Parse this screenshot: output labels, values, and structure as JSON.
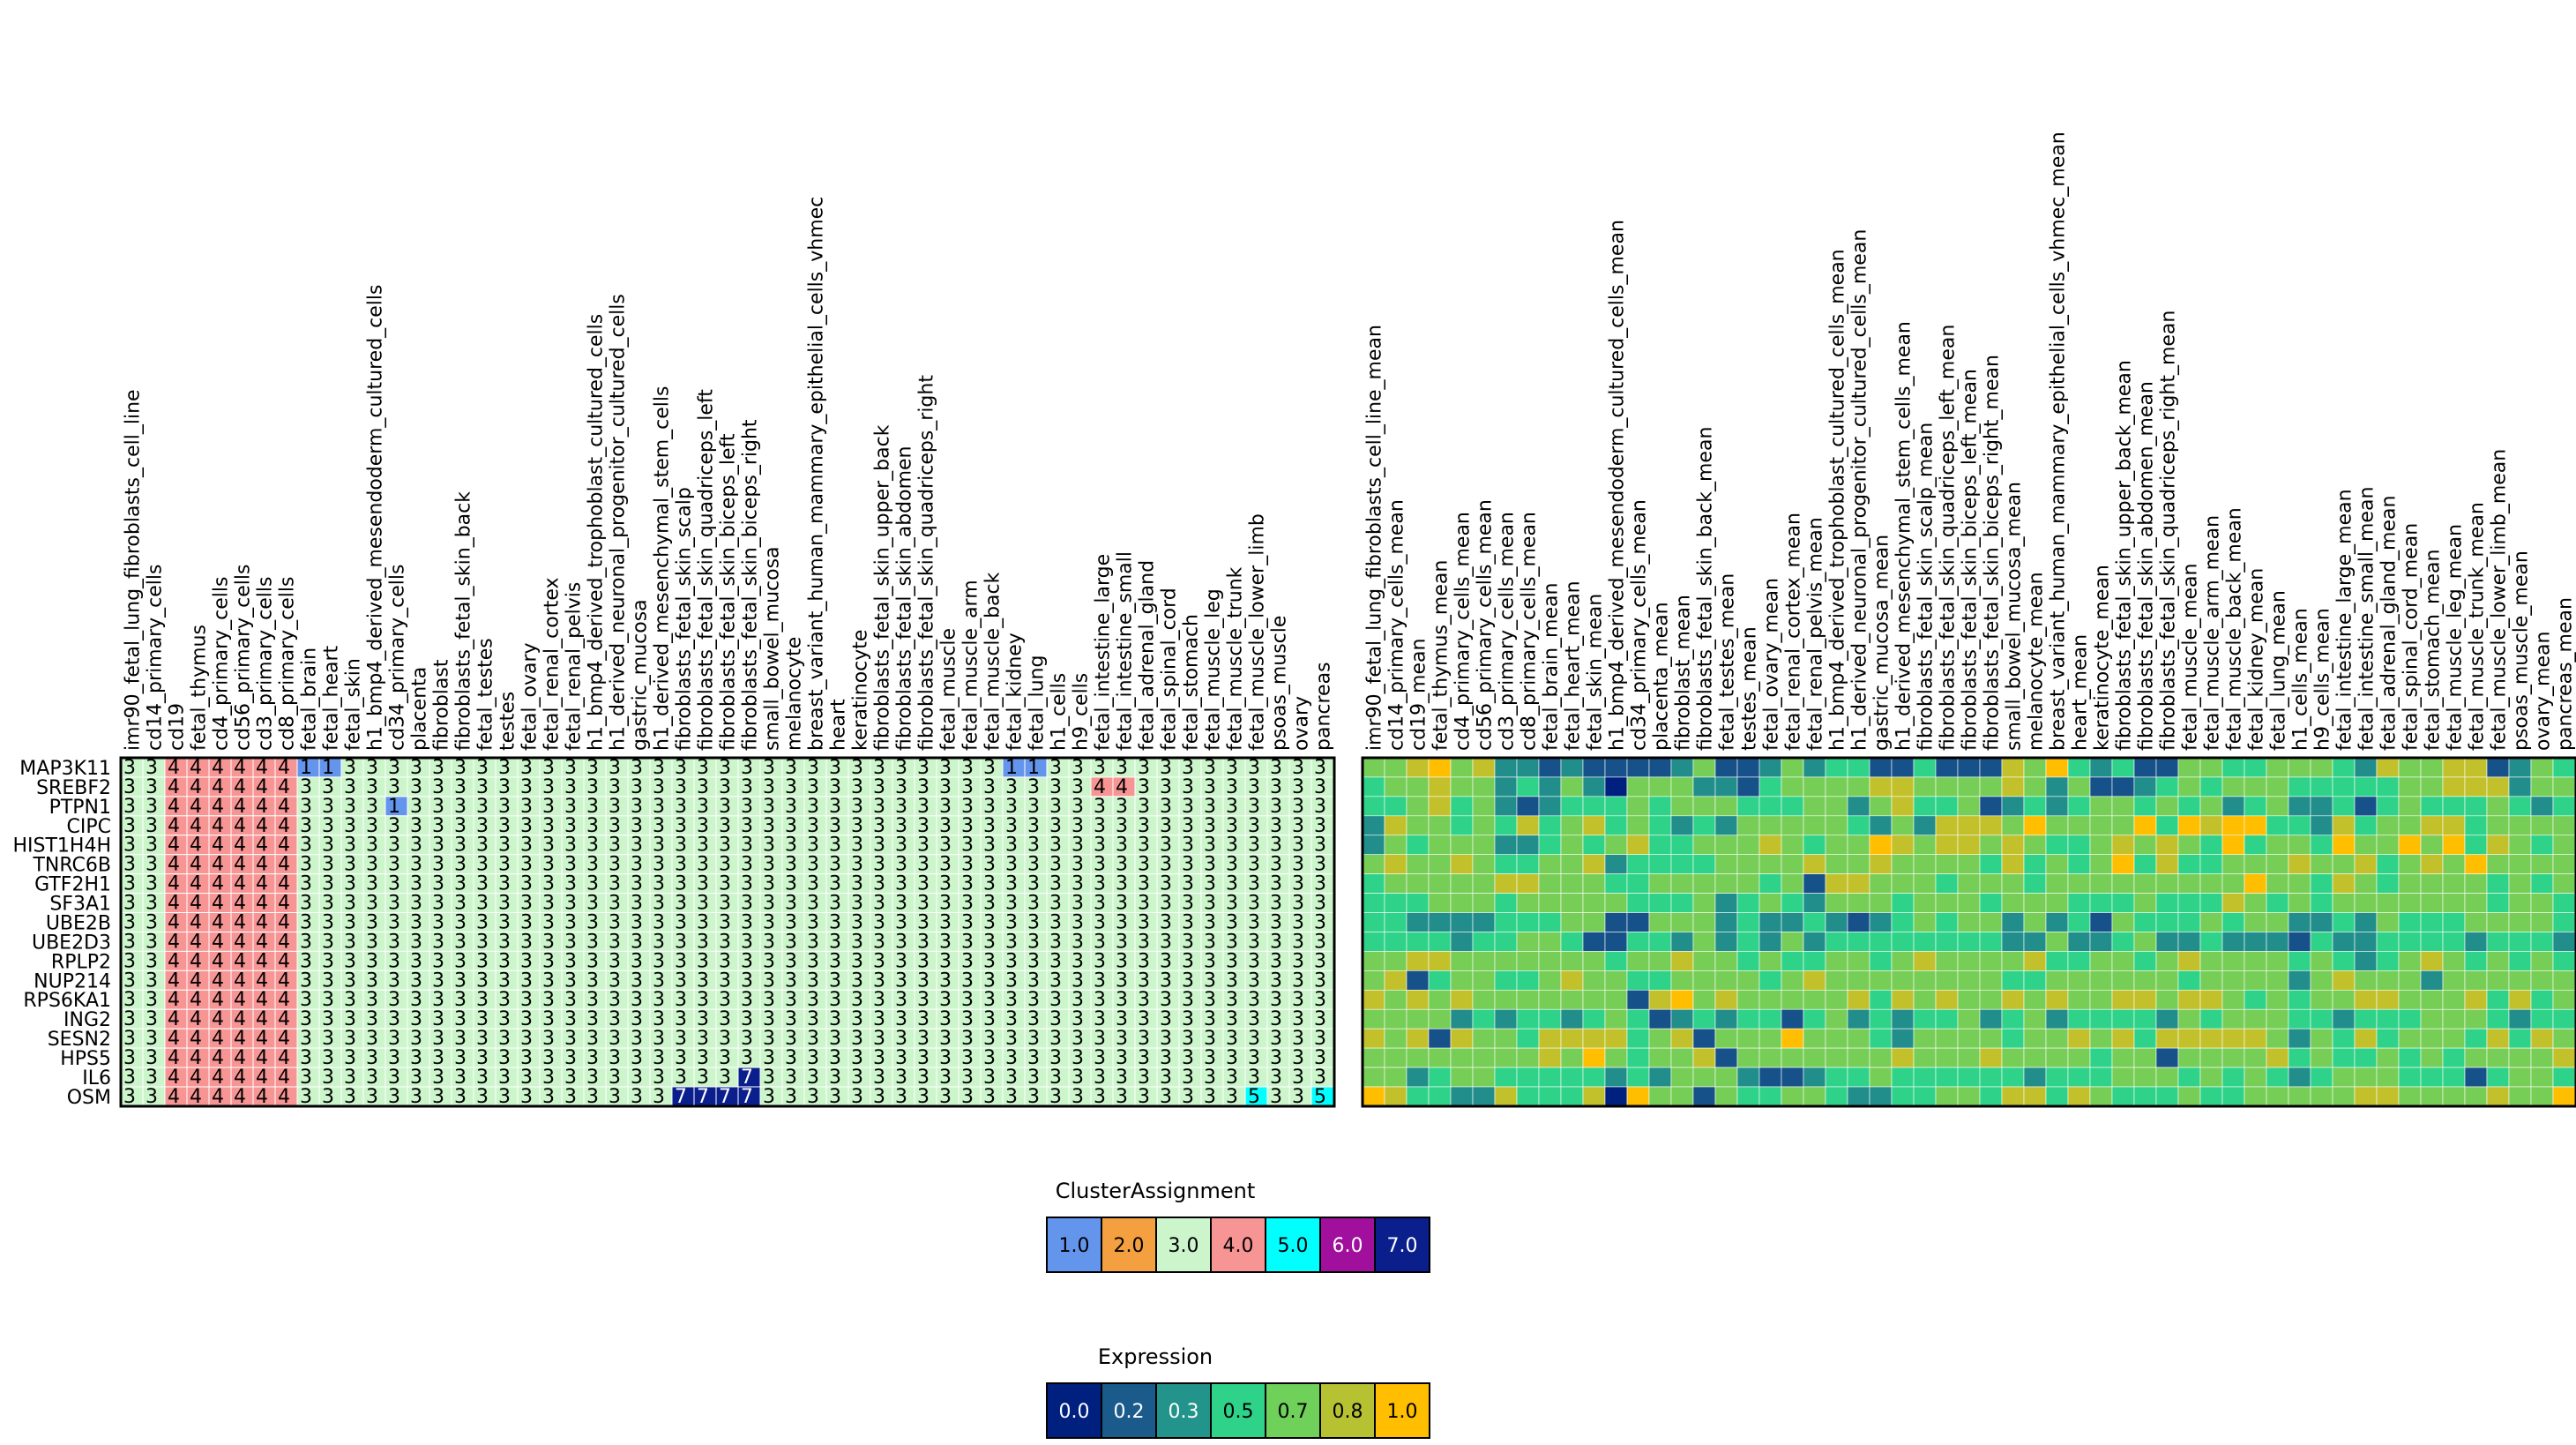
{
  "chart_data": [
    {
      "type": "heatmap",
      "name": "cluster_assignment",
      "title": "",
      "rows": [
        "MAP3K11",
        "SREBF2",
        "PTPN1",
        "CIPC",
        "HIST1H4H",
        "TNRC6B",
        "GTF2H1",
        "SF3A1",
        "UBE2B",
        "UBE2D3",
        "RPLP2",
        "NUP214",
        "RPS6KA1",
        "ING2",
        "SESN2",
        "HPS5",
        "IL6",
        "OSM"
      ],
      "columns": [
        "imr90_fetal_lung_fibroblasts_cell_line",
        "cd14_primary_cells",
        "cd19",
        "fetal_thymus",
        "cd4_primary_cells",
        "cd56_primary_cells",
        "cd3_primary_cells",
        "cd8_primary_cells",
        "fetal_brain",
        "fetal_heart",
        "fetal_skin",
        "h1_bmp4_derived_mesendoderm_cultured_cells",
        "cd34_primary_cells",
        "placenta",
        "fibroblast",
        "fibroblasts_fetal_skin_back",
        "fetal_testes",
        "testes",
        "fetal_ovary",
        "fetal_renal_cortex",
        "fetal_renal_pelvis",
        "h1_bmp4_derived_trophoblast_cultured_cells",
        "h1_derived_neuronal_progenitor_cultured_cells",
        "gastric_mucosa",
        "h1_derived_mesenchymal_stem_cells",
        "fibroblasts_fetal_skin_scalp",
        "fibroblasts_fetal_skin_quadriceps_left",
        "fibroblasts_fetal_skin_biceps_left",
        "fibroblasts_fetal_skin_biceps_right",
        "small_bowel_mucosa",
        "melanocyte",
        "breast_variant_human_mammary_epithelial_cells_vhmec",
        "heart",
        "keratinocyte",
        "fibroblasts_fetal_skin_upper_back",
        "fibroblasts_fetal_skin_abdomen",
        "fibroblasts_fetal_skin_quadriceps_right",
        "fetal_muscle",
        "fetal_muscle_arm",
        "fetal_muscle_back",
        "fetal_kidney",
        "fetal_lung",
        "h1_cells",
        "h9_cells",
        "fetal_intestine_large",
        "fetal_intestine_small",
        "fetal_adrenal_gland",
        "fetal_spinal_cord",
        "fetal_stomach",
        "fetal_muscle_leg",
        "fetal_muscle_trunk",
        "fetal_muscle_lower_limb",
        "psoas_muscle",
        "ovary",
        "pancreas"
      ],
      "default_value": 3,
      "column_default_values": {
        "fetal_thymus": 4,
        "cd4_primary_cells": 4,
        "cd56_primary_cells": 4,
        "cd3_primary_cells": 4,
        "cd8_primary_cells": 4,
        "cd19": 4
      },
      "exceptions": [
        {
          "row": "MAP3K11",
          "column": "fetal_brain",
          "value": 1
        },
        {
          "row": "MAP3K11",
          "column": "fetal_heart",
          "value": 1
        },
        {
          "row": "MAP3K11",
          "column": "fetal_kidney",
          "value": 1
        },
        {
          "row": "MAP3K11",
          "column": "fetal_lung",
          "value": 1
        },
        {
          "row": "SREBF2",
          "column": "fetal_intestine_large",
          "value": 4
        },
        {
          "row": "SREBF2",
          "column": "fetal_intestine_small",
          "value": 4
        },
        {
          "row": "PTPN1",
          "column": "cd34_primary_cells",
          "value": 1
        },
        {
          "row": "IL6",
          "column": "fibroblasts_fetal_skin_biceps_right",
          "value": 7
        },
        {
          "row": "OSM",
          "column": "fibroblasts_fetal_skin_scalp",
          "value": 7
        },
        {
          "row": "OSM",
          "column": "fibroblasts_fetal_skin_quadriceps_left",
          "value": 7
        },
        {
          "row": "OSM",
          "column": "fibroblasts_fetal_skin_biceps_left",
          "value": 7
        },
        {
          "row": "OSM",
          "column": "fibroblasts_fetal_skin_biceps_right",
          "value": 7
        },
        {
          "row": "OSM",
          "column": "fetal_muscle_lower_limb",
          "value": 5
        },
        {
          "row": "OSM",
          "column": "pancreas",
          "value": 5
        }
      ],
      "legend": {
        "title": "ClusterAssignment",
        "labels": [
          "1.0",
          "2.0",
          "3.0",
          "4.0",
          "5.0",
          "6.0",
          "7.0"
        ],
        "colors": [
          "#6495ed",
          "#f4a040",
          "#ccf5cc",
          "#f79494",
          "#00ffff",
          "#a0109c",
          "#0a1e8c"
        ],
        "text_colors": [
          "#000000",
          "#000000",
          "#000000",
          "#000000",
          "#000000",
          "#ffffff",
          "#ffffff"
        ]
      }
    },
    {
      "type": "heatmap",
      "name": "expression",
      "title": "",
      "rows": [
        "MAP3K11",
        "SREBF2",
        "PTPN1",
        "CIPC",
        "HIST1H4H",
        "TNRC6B",
        "GTF2H1",
        "SF3A1",
        "UBE2B",
        "UBE2D3",
        "RPLP2",
        "NUP214",
        "RPS6KA1",
        "ING2",
        "SESN2",
        "HPS5",
        "IL6",
        "OSM"
      ],
      "columns": [
        "imr90_fetal_lung_fibroblasts_cell_line_mean",
        "cd14_primary_cells_mean",
        "cd19_mean",
        "fetal_thymus_mean",
        "cd4_primary_cells_mean",
        "cd56_primary_cells_mean",
        "cd3_primary_cells_mean",
        "cd8_primary_cells_mean",
        "fetal_brain_mean",
        "fetal_heart_mean",
        "fetal_skin_mean",
        "h1_bmp4_derived_mesendoderm_cultured_cells_mean",
        "cd34_primary_cells_mean",
        "placenta_mean",
        "fibroblast_mean",
        "fibroblasts_fetal_skin_back_mean",
        "fetal_testes_mean",
        "testes_mean",
        "fetal_ovary_mean",
        "fetal_renal_cortex_mean",
        "fetal_renal_pelvis_mean",
        "h1_bmp4_derived_trophoblast_cultured_cells_mean",
        "h1_derived_neuronal_progenitor_cultured_cells_mean",
        "gastric_mucosa_mean",
        "h1_derived_mesenchymal_stem_cells_mean",
        "fibroblasts_fetal_skin_scalp_mean",
        "fibroblasts_fetal_skin_quadriceps_left_mean",
        "fibroblasts_fetal_skin_biceps_left_mean",
        "fibroblasts_fetal_skin_biceps_right_mean",
        "small_bowel_mucosa_mean",
        "melanocyte_mean",
        "breast_variant_human_mammary_epithelial_cells_vhmec_mean",
        "heart_mean",
        "keratinocyte_mean",
        "fibroblasts_fetal_skin_upper_back_mean",
        "fibroblasts_fetal_skin_abdomen_mean",
        "fibroblasts_fetal_skin_quadriceps_right_mean",
        "fetal_muscle_mean",
        "fetal_muscle_arm_mean",
        "fetal_muscle_back_mean",
        "fetal_kidney_mean",
        "fetal_lung_mean",
        "h1_cells_mean",
        "h9_cells_mean",
        "fetal_intestine_large_mean",
        "fetal_intestine_small_mean",
        "fetal_adrenal_gland_mean",
        "fetal_spinal_cord_mean",
        "fetal_stomach_mean",
        "fetal_muscle_leg_mean",
        "fetal_muscle_trunk_mean",
        "fetal_muscle_lower_limb_mean",
        "psoas_muscle_mean",
        "ovary_mean",
        "pancreas_mean"
      ],
      "values": [
        "44564522121111241124233113111546323114433444325445512433",
        "34454423242044422134444554444542411234344433333445552445",
        "33453421233343444333442453341232344343423422313433343232",
        "25443435345343232444443242555464444636566332534455344447",
        "24344422343453344454344654554543345454363443644646354345",
        "45445433445233334444544544443534346353344454453454644446",
        "34444455444334444434155444344434444444446443543444434344",
        "33344434444433342343244434443444333433354343444444434434",
        "33222233344114442322321234344242314333434422324333444432",
        "33332334431133242324233333333224223422322213223333233322",
        "44554444444344544343344345444453344345444434323454343434",
        "45134433454433444434544444444334444443444424544424444445",
        "54545444444415645444445354544545445545543434455444535344",
        "44442323323431232331342323342342333324344433233344432333",
        "54515443555534514446444324444344545355555424353444353544",
        "44444444546434451444444454445444434414444534334343444454",
        "44234433333232444211233433333323334443434323444333134434",
        "65332253335064414334432233443553543334334444455444454466"
      ],
      "value_scale": {
        "min": 0.0,
        "max": 1.0,
        "digits": 6
      },
      "legend": {
        "title": "Expression",
        "labels": [
          "0.0",
          "0.2",
          "0.3",
          "0.5",
          "0.7",
          "0.8",
          "1.0"
        ],
        "colors": [
          "#00207f",
          "#1a5b8c",
          "#22948b",
          "#2fd289",
          "#6fd05a",
          "#b7c233",
          "#ffbe00"
        ],
        "text_colors": [
          "#ffffff",
          "#ffffff",
          "#ffffff",
          "#000000",
          "#000000",
          "#000000",
          "#000000"
        ]
      }
    }
  ]
}
